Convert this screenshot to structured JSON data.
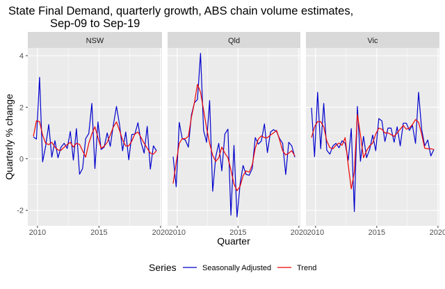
{
  "chart_data": {
    "type": "line",
    "title_line1": "State Final Demand, quarterly growth, ABS chain volume estimates,",
    "title_line2": "Sep-09 to Sep-19",
    "xlabel": "Quarter",
    "ylabel": "Quarterly % change",
    "x_start": "Sep-09",
    "x_end": "Sep-19",
    "x_ticks": [
      "2010",
      "2015",
      "2020"
    ],
    "y_ticks": [
      -2,
      0,
      2,
      4
    ],
    "ylim": [
      -2.6,
      4.3
    ],
    "grid": true,
    "legend": {
      "title": "Series",
      "placement": "bottom",
      "entries": [
        {
          "name": "Seasonally Adjusted",
          "color": "#0000cc"
        },
        {
          "name": "Trend",
          "color": "#ee0000"
        }
      ]
    },
    "facets": [
      {
        "name": "NSW",
        "series": [
          {
            "name": "Seasonally Adjusted",
            "values": [
              0.85,
              0.76,
              3.16,
              -0.12,
              0.5,
              1.33,
              0.06,
              0.7,
              0.04,
              0.45,
              0.6,
              0.4,
              1.06,
              -0.05,
              1.17,
              -0.6,
              -0.38,
              0.78,
              0.98,
              2.15,
              -0.38,
              1.43,
              0.36,
              0.45,
              1.0,
              0.48,
              1.33,
              2.03,
              1.33,
              0.31,
              1.04,
              -0.04,
              0.94,
              0.96,
              1.4,
              0.64,
              0.22,
              1.26,
              -0.4,
              0.5,
              0.31
            ]
          },
          {
            "name": "Trend",
            "values": [
              0.87,
              1.47,
              1.44,
              0.92,
              0.6,
              0.55,
              0.64,
              0.45,
              0.34,
              0.33,
              0.45,
              0.55,
              0.64,
              0.45,
              0.6,
              0.56,
              0.31,
              0.06,
              0.6,
              0.96,
              1.24,
              0.82,
              0.41,
              0.48,
              0.64,
              0.92,
              1.24,
              1.43,
              1.1,
              0.73,
              0.5,
              0.5,
              0.69,
              0.96,
              1.04,
              0.82,
              0.6,
              0.41,
              0.22,
              0.18,
              0.31
            ]
          }
        ]
      },
      {
        "name": "Qld",
        "series": [
          {
            "name": "Seasonally Adjusted",
            "values": [
              0.08,
              -1.09,
              1.41,
              0.78,
              0.73,
              0.45,
              1.7,
              2.17,
              2.3,
              4.09,
              1.1,
              0.64,
              2.26,
              -1.26,
              0.08,
              0.6,
              -0.47,
              0.96,
              1.15,
              -2.19,
              0.52,
              -2.26,
              -0.98,
              -0.26,
              -0.61,
              -0.64,
              -0.38,
              0.82,
              0.57,
              0.69,
              1.35,
              0.24,
              1.04,
              1.13,
              1.06,
              0.78,
              0.6,
              -0.61,
              0.64,
              0.5,
              0.06
            ]
          },
          {
            "name": "Trend",
            "values": [
              -0.96,
              -0.15,
              0.6,
              0.78,
              0.78,
              0.87,
              1.61,
              2.17,
              2.89,
              2.58,
              1.89,
              1.19,
              0.6,
              0.13,
              -0.1,
              0.04,
              0.45,
              0.22,
              0.04,
              -0.43,
              -0.98,
              -1.24,
              -1.07,
              -0.66,
              -0.47,
              -0.52,
              -0.24,
              0.41,
              0.76,
              0.89,
              0.82,
              0.82,
              0.92,
              1.0,
              1.1,
              0.73,
              0.31,
              0.15,
              0.22,
              0.31,
              0.11
            ]
          }
        ]
      },
      {
        "name": "Vic",
        "series": [
          {
            "name": "Seasonally Adjusted",
            "values": [
              1.98,
              0.08,
              2.58,
              0.39,
              2.15,
              0.33,
              0.18,
              0.5,
              0.6,
              0.43,
              0.7,
              0.6,
              -0.06,
              1.17,
              -2.05,
              2.03,
              -0.1,
              0.87,
              0.04,
              0.36,
              0.92,
              0.31,
              1.56,
              1.47,
              0.67,
              1.19,
              1.19,
              0.64,
              1.24,
              0.5,
              1.38,
              1.38,
              1.1,
              1.29,
              0.6,
              2.58,
              1.15,
              0.5,
              0.73,
              0.11,
              0.36
            ]
          },
          {
            "name": "Trend",
            "values": [
              0.82,
              1.24,
              1.44,
              1.44,
              1.24,
              0.69,
              0.43,
              0.39,
              0.52,
              0.61,
              0.52,
              0.82,
              -0.24,
              -1.17,
              -0.52,
              1.72,
              0.92,
              0.04,
              0.31,
              0.5,
              0.61,
              0.96,
              1.19,
              1.15,
              1.0,
              1.0,
              0.94,
              0.87,
              1.0,
              1.15,
              1.29,
              1.15,
              1.19,
              1.33,
              1.52,
              1.41,
              0.96,
              0.41,
              0.39,
              0.39,
              0.36
            ]
          }
        ]
      }
    ]
  }
}
